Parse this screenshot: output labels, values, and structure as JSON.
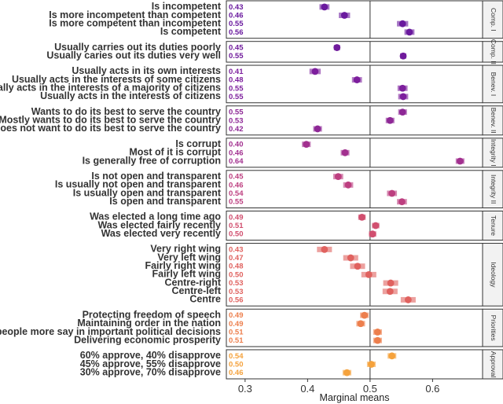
{
  "chart_data": {
    "type": "scatter",
    "subtype": "faceted point estimates with confidence intervals",
    "xlabel": "Marginal means",
    "xlim": [
      0.27,
      0.68
    ],
    "xticks": [
      0.3,
      0.4,
      0.5,
      0.6
    ],
    "xtick_labels": [
      "0.3",
      "0.4",
      "0.5",
      "0.6"
    ],
    "reference_line": 0.5,
    "grid": false,
    "facets": [
      {
        "name": "Comp. I",
        "color": "#6a1a9e",
        "items": [
          {
            "label": "Is incompetent",
            "value_text": "0.43",
            "mean": 0.427,
            "lo": 0.419,
            "hi": 0.435
          },
          {
            "label": "Is more incompetent than competent",
            "value_text": "0.46",
            "mean": 0.459,
            "lo": 0.45,
            "hi": 0.468
          },
          {
            "label": "Is more competent than incompetent",
            "value_text": "0.55",
            "mean": 0.552,
            "lo": 0.543,
            "hi": 0.561
          },
          {
            "label": "Is competent",
            "value_text": "0.56",
            "mean": 0.563,
            "lo": 0.555,
            "hi": 0.571
          }
        ]
      },
      {
        "name": "Comp. II",
        "color": "#701b9c",
        "items": [
          {
            "label": "Usually carries out its duties poorly",
            "value_text": "0.45",
            "mean": 0.447,
            "lo": 0.442,
            "hi": 0.452
          },
          {
            "label": "Usually caries out its duties very well",
            "value_text": "0.55",
            "mean": 0.553,
            "lo": 0.548,
            "hi": 0.558
          }
        ]
      },
      {
        "name": "Benev. I",
        "color": "#7d1f9d",
        "items": [
          {
            "label": "Usually acts in its own interests",
            "value_text": "0.41",
            "mean": 0.412,
            "lo": 0.403,
            "hi": 0.421
          },
          {
            "label": "Usually acts in the interests of some citizens",
            "value_text": "0.48",
            "mean": 0.479,
            "lo": 0.471,
            "hi": 0.487
          },
          {
            "label": "Usually acts in the interests of a majority of citizens",
            "value_text": "0.55",
            "mean": 0.552,
            "lo": 0.544,
            "hi": 0.56
          },
          {
            "label": "Usually acts in the interests of citizens",
            "value_text": "0.55",
            "mean": 0.553,
            "lo": 0.545,
            "hi": 0.561
          }
        ]
      },
      {
        "name": "Benev. II",
        "color": "#8e2896",
        "items": [
          {
            "label": "Wants to do its best to serve the country",
            "value_text": "0.55",
            "mean": 0.552,
            "lo": 0.545,
            "hi": 0.559
          },
          {
            "label": "Mostly wants to do its best to serve the country",
            "value_text": "0.53",
            "mean": 0.532,
            "lo": 0.525,
            "hi": 0.539
          },
          {
            "label": "Does not want to do its best to serve the country",
            "value_text": "0.42",
            "mean": 0.416,
            "lo": 0.409,
            "hi": 0.423
          }
        ]
      },
      {
        "name": "Integrity I",
        "color": "#a2308f",
        "items": [
          {
            "label": "Is corrupt",
            "value_text": "0.40",
            "mean": 0.398,
            "lo": 0.391,
            "hi": 0.405
          },
          {
            "label": "Most of it is corrupt",
            "value_text": "0.46",
            "mean": 0.46,
            "lo": 0.453,
            "hi": 0.467
          },
          {
            "label": "Is generally free of corruption",
            "value_text": "0.64",
            "mean": 0.644,
            "lo": 0.637,
            "hi": 0.651
          }
        ]
      },
      {
        "name": "Integrity II",
        "color": "#bd3f80",
        "items": [
          {
            "label": "Is not open and transparent",
            "value_text": "0.45",
            "mean": 0.449,
            "lo": 0.441,
            "hi": 0.457
          },
          {
            "label": "Is usually not open and transparent",
            "value_text": "0.46",
            "mean": 0.465,
            "lo": 0.457,
            "hi": 0.473
          },
          {
            "label": "Is usually open and transparent",
            "value_text": "0.54",
            "mean": 0.535,
            "lo": 0.527,
            "hi": 0.543
          },
          {
            "label": "Is open and transparent",
            "value_text": "0.55",
            "mean": 0.551,
            "lo": 0.543,
            "hi": 0.559
          }
        ]
      },
      {
        "name": "Tenure",
        "color": "#d14f6f",
        "items": [
          {
            "label": "Was elected a long time ago",
            "value_text": "0.49",
            "mean": 0.487,
            "lo": 0.481,
            "hi": 0.493
          },
          {
            "label": "Was elected fairly recently",
            "value_text": "0.51",
            "mean": 0.509,
            "lo": 0.503,
            "hi": 0.515
          },
          {
            "label": "Was elected very recently",
            "value_text": "0.50",
            "mean": 0.504,
            "lo": 0.498,
            "hi": 0.51
          }
        ]
      },
      {
        "name": "Ideology",
        "color": "#e0625f",
        "items": [
          {
            "label": "Very right wing",
            "value_text": "0.43",
            "mean": 0.427,
            "lo": 0.415,
            "hi": 0.439
          },
          {
            "label": "Very left wing",
            "value_text": "0.47",
            "mean": 0.469,
            "lo": 0.457,
            "hi": 0.481
          },
          {
            "label": "Fairly right wing",
            "value_text": "0.48",
            "mean": 0.48,
            "lo": 0.468,
            "hi": 0.492
          },
          {
            "label": "Fairly left wing",
            "value_text": "0.50",
            "mean": 0.498,
            "lo": 0.486,
            "hi": 0.51
          },
          {
            "label": "Centre-right",
            "value_text": "0.53",
            "mean": 0.533,
            "lo": 0.521,
            "hi": 0.545
          },
          {
            "label": "Centre-left",
            "value_text": "0.53",
            "mean": 0.532,
            "lo": 0.52,
            "hi": 0.544
          },
          {
            "label": "Centre",
            "value_text": "0.56",
            "mean": 0.561,
            "lo": 0.549,
            "hi": 0.573
          }
        ]
      },
      {
        "name": "Priorities",
        "color": "#ed7f4d",
        "items": [
          {
            "label": "Protecting freedom of speech",
            "value_text": "0.49",
            "mean": 0.491,
            "lo": 0.484,
            "hi": 0.498
          },
          {
            "label": "Maintaining order in the nation",
            "value_text": "0.49",
            "mean": 0.485,
            "lo": 0.478,
            "hi": 0.492
          },
          {
            "label": "Giving people more say in important political decisions",
            "value_text": "0.51",
            "mean": 0.512,
            "lo": 0.505,
            "hi": 0.519
          },
          {
            "label": "Delivering economic prosperity",
            "value_text": "0.51",
            "mean": 0.512,
            "lo": 0.505,
            "hi": 0.519
          }
        ]
      },
      {
        "name": "Approval",
        "color": "#f5a23c",
        "items": [
          {
            "label": "60% approve, 40% disapprove",
            "value_text": "0.54",
            "mean": 0.535,
            "lo": 0.528,
            "hi": 0.542
          },
          {
            "label": "45% approve, 55% disapprove",
            "value_text": "0.50",
            "mean": 0.502,
            "lo": 0.495,
            "hi": 0.509
          },
          {
            "label": "30% approve, 70% disapprove",
            "value_text": "0.46",
            "mean": 0.463,
            "lo": 0.456,
            "hi": 0.47
          }
        ]
      }
    ]
  }
}
